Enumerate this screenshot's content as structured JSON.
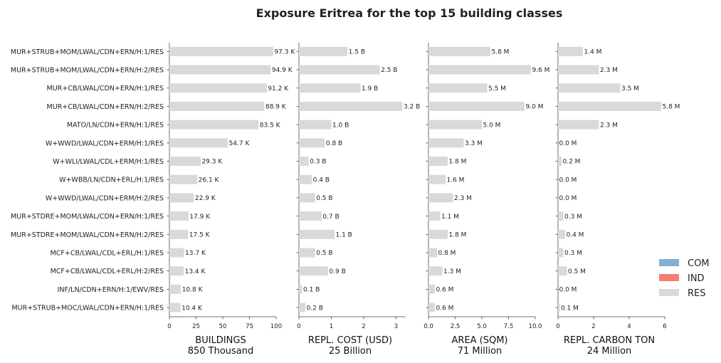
{
  "chart_data": {
    "type": "bar",
    "orientation": "horizontal",
    "title": "Exposure Eritrea for the top 15 building classes",
    "categories": [
      "MUR+STRUB+MOM/LWAL/CDN+ERN/H:1/RES",
      "MUR+STRUB+MOM/LWAL/CDN+ERN/H:2/RES",
      "MUR+CB/LWAL/CDN+ERN/H:1/RES",
      "MUR+CB/LWAL/CDN+ERN/H:2/RES",
      "MATO/LN/CDN+ERN/H:1/RES",
      "W+WWD/LWAL/CDN+ERM/H:1/RES",
      "W+WLI/LWAL/CDL+ERM/H:1/RES",
      "W+WBB/LN/CDN+ERL/H:1/RES",
      "W+WWD/LWAL/CDN+ERM/H:2/RES",
      "MUR+STDRE+MOM/LWAL/CDN+ERN/H:1/RES",
      "MUR+STDRE+MOM/LWAL/CDN+ERN/H:2/RES",
      "MCF+CB/LWAL/CDL+ERL/H:1/RES",
      "MCF+CB/LWAL/CDL+ERL/H:2/RES",
      "INF/LN/CDN+ERN/H:1/EWV/RES",
      "MUR+STRUB+MOC/LWAL/CDN+ERN/H:1/RES"
    ],
    "legend": {
      "placement": "lower-right",
      "entries": [
        {
          "name": "COM",
          "color": "#7fb1d3"
        },
        {
          "name": "IND",
          "color": "#f4806f"
        },
        {
          "name": "RES",
          "color": "#d9d9d9"
        }
      ]
    },
    "bar_color": "#d9d9d9",
    "panels": [
      {
        "xlabel": "BUILDINGS",
        "subtitle": "850 Thousand",
        "xlim": [
          0,
          100
        ],
        "ticks": [
          0,
          25,
          50,
          75,
          100
        ],
        "tick_labels": [
          "0",
          "25",
          "50",
          "75",
          "100"
        ],
        "values": [
          97.3,
          94.9,
          91.2,
          88.9,
          83.5,
          54.7,
          29.3,
          26.1,
          22.9,
          17.9,
          17.5,
          13.7,
          13.4,
          10.8,
          10.4
        ],
        "labels": [
          "97.3 K",
          "94.9 K",
          "91.2 K",
          "88.9 K",
          "83.5 K",
          "54.7 K",
          "29.3 K",
          "26.1 K",
          "22.9 K",
          "17.9 K",
          "17.5 K",
          "13.7 K",
          "13.4 K",
          "10.8 K",
          "10.4 K"
        ]
      },
      {
        "xlabel": "REPL. COST (USD)",
        "subtitle": "25 Billion",
        "xlim": [
          0,
          3.3
        ],
        "ticks": [
          0,
          1,
          2,
          3
        ],
        "tick_labels": [
          "0",
          "1",
          "2",
          "3"
        ],
        "values": [
          1.5,
          2.5,
          1.9,
          3.2,
          1.0,
          0.8,
          0.3,
          0.4,
          0.5,
          0.7,
          1.1,
          0.5,
          0.9,
          0.1,
          0.2
        ],
        "labels": [
          "1.5 B",
          "2.5 B",
          "1.9 B",
          "3.2 B",
          "1.0 B",
          "0.8 B",
          "0.3 B",
          "0.4 B",
          "0.5 B",
          "0.7 B",
          "1.1 B",
          "0.5 B",
          "0.9 B",
          "0.1 B",
          "0.2 B"
        ]
      },
      {
        "xlabel": "AREA (SQM)",
        "subtitle": "71 Million",
        "xlim": [
          0,
          10
        ],
        "ticks": [
          0,
          2.5,
          5,
          7.5,
          10
        ],
        "tick_labels": [
          "0.0",
          "2.5",
          "5.0",
          "7.5",
          "10.0"
        ],
        "values": [
          5.8,
          9.6,
          5.5,
          9.0,
          5.0,
          3.3,
          1.8,
          1.6,
          2.3,
          1.1,
          1.8,
          0.8,
          1.3,
          0.6,
          0.6
        ],
        "labels": [
          "5.8 M",
          "9.6 M",
          "5.5 M",
          "9.0 M",
          "5.0 M",
          "3.3 M",
          "1.8 M",
          "1.6 M",
          "2.3 M",
          "1.1 M",
          "1.8 M",
          "0.8 M",
          "1.3 M",
          "0.6 M",
          "0.6 M"
        ]
      },
      {
        "xlabel": "REPL. CARBON TON",
        "subtitle": "24 Million",
        "xlim": [
          0,
          6
        ],
        "ticks": [
          0,
          2,
          4,
          6
        ],
        "tick_labels": [
          "0",
          "2",
          "4",
          "6"
        ],
        "values": [
          1.4,
          2.3,
          3.5,
          5.8,
          2.3,
          0.0,
          0.2,
          0.0,
          0.0,
          0.3,
          0.4,
          0.3,
          0.5,
          0.0,
          0.1
        ],
        "labels": [
          "1.4 M",
          "2.3 M",
          "3.5 M",
          "5.8 M",
          "2.3 M",
          "0.0 M",
          "0.2 M",
          "0.0 M",
          "0.0 M",
          "0.3 M",
          "0.4 M",
          "0.3 M",
          "0.5 M",
          "0.0 M",
          "0.1 M"
        ]
      }
    ]
  }
}
